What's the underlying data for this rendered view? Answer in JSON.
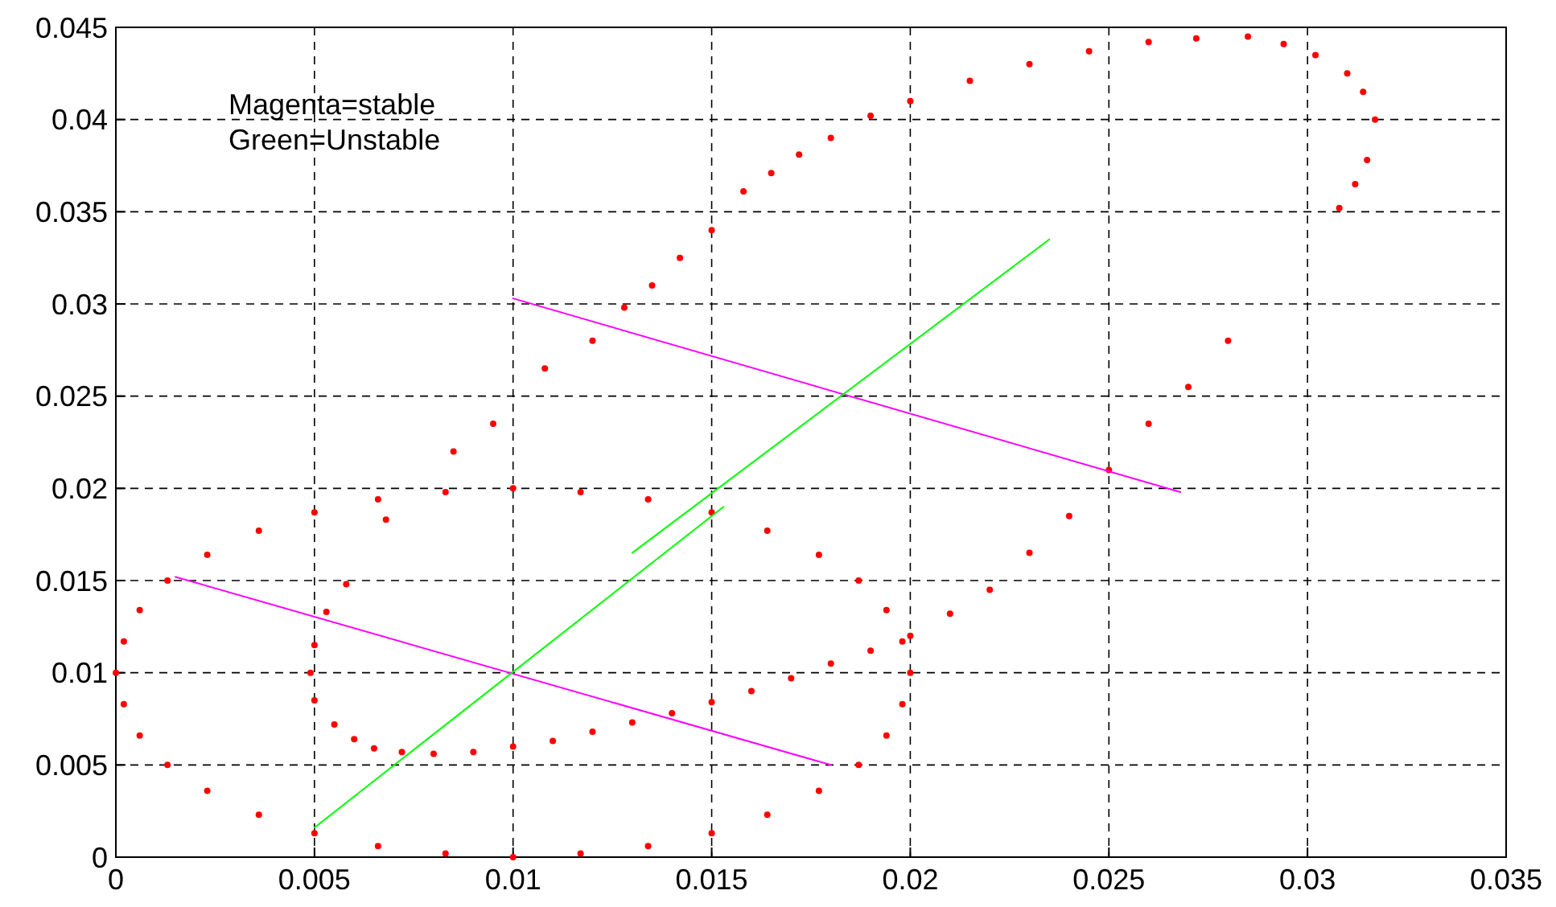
{
  "chart_data": {
    "type": "scatter",
    "xlim": [
      0,
      0.035
    ],
    "ylim": [
      0,
      0.045
    ],
    "xticks": [
      0,
      0.005,
      0.01,
      0.015,
      0.02,
      0.025,
      0.03,
      0.035
    ],
    "yticks": [
      0,
      0.005,
      0.01,
      0.015,
      0.02,
      0.025,
      0.03,
      0.035,
      0.04,
      0.045
    ],
    "grid": true,
    "annotations": [
      "Magenta=stable",
      "Green=Unstable"
    ],
    "series": [
      {
        "marker": "circle",
        "color": "#ff0000",
        "x": [
          0.02,
          0.0198,
          0.0194,
          0.0187,
          0.0177,
          0.0164,
          0.015,
          0.0134,
          0.0117,
          0.01,
          0.0083,
          0.0066,
          0.005,
          0.0036,
          0.0023,
          0.0013,
          0.0006,
          0.0002,
          0,
          0.0002,
          0.0006,
          0.0013,
          0.0023,
          0.0036,
          0.005,
          0.0066,
          0.0083,
          0.01,
          0.0117,
          0.0134,
          0.015,
          0.0164,
          0.0177,
          0.0187,
          0.0194,
          0.0198
        ],
        "values": [
          0.01,
          0.0117,
          0.0134,
          0.015,
          0.0164,
          0.0177,
          0.0187,
          0.0194,
          0.0198,
          0.02,
          0.0198,
          0.0194,
          0.0187,
          0.0177,
          0.0164,
          0.015,
          0.0134,
          0.0117,
          0.01,
          0.0083,
          0.0066,
          0.005,
          0.0036,
          0.0023,
          0.0013,
          0.0006,
          0.0002,
          0,
          0.0002,
          0.0006,
          0.0013,
          0.0023,
          0.0036,
          0.005,
          0.0066,
          0.0083
        ]
      },
      {
        "marker": "circle",
        "color": "#ff0000",
        "x": [
          0.0308,
          0.0312,
          0.0315,
          0.0317,
          0.0314,
          0.031,
          0.0302,
          0.0294,
          0.0285,
          0.0272,
          0.026,
          0.0245,
          0.023,
          0.0215,
          0.02,
          0.019,
          0.018,
          0.0172,
          0.0165,
          0.0158,
          0.015,
          0.0142,
          0.0135,
          0.0128,
          0.012,
          0.0108,
          0.0095,
          0.0085,
          0.0068,
          0.0058,
          0.0053,
          0.005,
          0.0049,
          0.005,
          0.0055,
          0.006,
          0.0065,
          0.0072,
          0.008,
          0.009,
          0.01,
          0.011,
          0.012,
          0.013,
          0.014,
          0.015,
          0.016,
          0.017,
          0.018,
          0.019,
          0.02,
          0.021,
          0.022,
          0.023,
          0.024,
          0.025,
          0.026,
          0.027,
          0.028
        ],
        "values": [
          0.0352,
          0.0365,
          0.0378,
          0.04,
          0.0415,
          0.0425,
          0.0435,
          0.0441,
          0.0445,
          0.0444,
          0.0442,
          0.0437,
          0.043,
          0.0421,
          0.041,
          0.0402,
          0.039,
          0.0381,
          0.0371,
          0.0361,
          0.034,
          0.0325,
          0.031,
          0.0298,
          0.028,
          0.0265,
          0.0235,
          0.022,
          0.0183,
          0.0148,
          0.0133,
          0.0115,
          0.01,
          0.0085,
          0.0072,
          0.0064,
          0.0059,
          0.0057,
          0.0056,
          0.0057,
          0.006,
          0.0063,
          0.0068,
          0.0073,
          0.0078,
          0.0084,
          0.009,
          0.0097,
          0.0105,
          0.0112,
          0.012,
          0.0132,
          0.0145,
          0.0165,
          0.0185,
          0.021,
          0.0235,
          0.0255,
          0.028
        ]
      },
      {
        "type": "line",
        "color": "#ff00ff",
        "x": [
          0.0015,
          0.018
        ],
        "values": [
          0.0152,
          0.005
        ]
      },
      {
        "type": "line",
        "color": "#ff00ff",
        "x": [
          0.01,
          0.0268
        ],
        "values": [
          0.0303,
          0.0198
        ]
      },
      {
        "type": "line",
        "color": "#00ff00",
        "x": [
          0.005,
          0.0153
        ],
        "values": [
          0.0016,
          0.019
        ]
      },
      {
        "type": "line",
        "color": "#00ff00",
        "x": [
          0.013,
          0.0235
        ],
        "values": [
          0.0165,
          0.0335
        ]
      }
    ]
  }
}
